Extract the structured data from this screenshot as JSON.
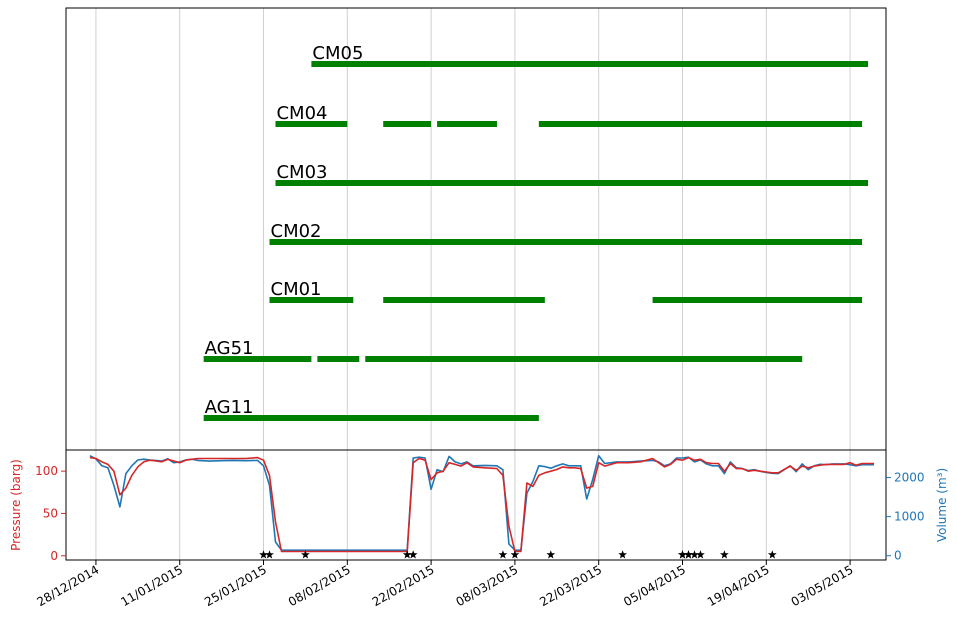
{
  "chart_data": [
    {
      "type": "timeline",
      "x_ticks": [
        "28/12/2014",
        "11/01/2015",
        "25/01/2015",
        "08/02/2015",
        "22/02/2015",
        "08/03/2015",
        "22/03/2015",
        "05/04/2015",
        "19/04/2015",
        "03/05/2015"
      ],
      "xlim": [
        "2014-12-23",
        "2015-05-09"
      ],
      "grid": "vertical",
      "bar_color": "#008000",
      "rows": [
        {
          "label": "CM05",
          "segments": [
            [
              "2015-02-02",
              "2015-05-06"
            ]
          ]
        },
        {
          "label": "CM04",
          "segments": [
            [
              "2015-01-27",
              "2015-02-08"
            ],
            [
              "2015-02-14",
              "2015-02-22"
            ],
            [
              "2015-02-23",
              "2015-03-05"
            ],
            [
              "2015-03-12",
              "2015-05-05"
            ]
          ]
        },
        {
          "label": "CM03",
          "segments": [
            [
              "2015-01-27",
              "2015-05-06"
            ]
          ]
        },
        {
          "label": "CM02",
          "segments": [
            [
              "2015-01-26",
              "2015-05-05"
            ]
          ]
        },
        {
          "label": "CM01",
          "segments": [
            [
              "2015-01-26",
              "2015-02-09"
            ],
            [
              "2015-02-14",
              "2015-03-13"
            ],
            [
              "2015-03-31",
              "2015-05-05"
            ]
          ]
        },
        {
          "label": "AG51",
          "segments": [
            [
              "2015-01-15",
              "2015-02-02"
            ],
            [
              "2015-02-03",
              "2015-02-10"
            ],
            [
              "2015-02-11",
              "2015-04-25"
            ]
          ]
        },
        {
          "label": "AG11",
          "segments": [
            [
              "2015-01-15",
              "2015-03-12"
            ]
          ]
        }
      ]
    },
    {
      "type": "line",
      "ylabel": "Pressure (barg)",
      "ylabel2": "Volume (m³)",
      "y_ticks": [
        0,
        50,
        100
      ],
      "y2_ticks": [
        0,
        1000,
        2000
      ],
      "ylim": [
        -5,
        125
      ],
      "y2lim": [
        -110,
        2705
      ],
      "grid": "vertical",
      "series": [
        {
          "color": "#d62728",
          "axis": "left",
          "points": [
            [
              "2014-12-27",
              116
            ],
            [
              "2014-12-28",
              115
            ],
            [
              "2014-12-29",
              111
            ],
            [
              "2014-12-30",
              108
            ],
            [
              "2014-12-31",
              100
            ],
            [
              "2015-01-01",
              72
            ],
            [
              "2015-01-02",
              80
            ],
            [
              "2015-01-03",
              95
            ],
            [
              "2015-01-04",
              105
            ],
            [
              "2015-01-05",
              111
            ],
            [
              "2015-01-06",
              113
            ],
            [
              "2015-01-07",
              112
            ],
            [
              "2015-01-08",
              111
            ],
            [
              "2015-01-09",
              114
            ],
            [
              "2015-01-10",
              112
            ],
            [
              "2015-01-11",
              110
            ],
            [
              "2015-01-12",
              113
            ],
            [
              "2015-01-13",
              114
            ],
            [
              "2015-01-14",
              115
            ],
            [
              "2015-01-16",
              115
            ],
            [
              "2015-01-18",
              115
            ],
            [
              "2015-01-20",
              115
            ],
            [
              "2015-01-22",
              115
            ],
            [
              "2015-01-24",
              116
            ],
            [
              "2015-01-25",
              113
            ],
            [
              "2015-01-26",
              95
            ],
            [
              "2015-01-27",
              40
            ],
            [
              "2015-01-28",
              5
            ],
            [
              "2015-02-02",
              5
            ],
            [
              "2015-02-10",
              5
            ],
            [
              "2015-02-15",
              5
            ],
            [
              "2015-02-18",
              5
            ],
            [
              "2015-02-19",
              110
            ],
            [
              "2015-02-20",
              115
            ],
            [
              "2015-02-21",
              113
            ],
            [
              "2015-02-22",
              90
            ],
            [
              "2015-02-23",
              98
            ],
            [
              "2015-02-24",
              100
            ],
            [
              "2015-02-25",
              110
            ],
            [
              "2015-02-26",
              108
            ],
            [
              "2015-02-27",
              106
            ],
            [
              "2015-02-28",
              110
            ],
            [
              "2015-03-01",
              105
            ],
            [
              "2015-03-03",
              104
            ],
            [
              "2015-03-05",
              103
            ],
            [
              "2015-03-06",
              95
            ],
            [
              "2015-03-07",
              35
            ],
            [
              "2015-03-08",
              5
            ],
            [
              "2015-03-09",
              5
            ],
            [
              "2015-03-10",
              86
            ],
            [
              "2015-03-11",
              82
            ],
            [
              "2015-03-12",
              95
            ],
            [
              "2015-03-13",
              98
            ],
            [
              "2015-03-14",
              100
            ],
            [
              "2015-03-15",
              102
            ],
            [
              "2015-03-16",
              105
            ],
            [
              "2015-03-17",
              104
            ],
            [
              "2015-03-18",
              104
            ],
            [
              "2015-03-19",
              103
            ],
            [
              "2015-03-20",
              80
            ],
            [
              "2015-03-21",
              82
            ],
            [
              "2015-03-22",
              110
            ],
            [
              "2015-03-23",
              106
            ],
            [
              "2015-03-25",
              110
            ],
            [
              "2015-03-27",
              110
            ],
            [
              "2015-03-29",
              111
            ],
            [
              "2015-03-31",
              115
            ],
            [
              "2015-04-01",
              110
            ],
            [
              "2015-04-02",
              105
            ],
            [
              "2015-04-03",
              108
            ],
            [
              "2015-04-04",
              114
            ],
            [
              "2015-04-05",
              113
            ],
            [
              "2015-04-06",
              116
            ],
            [
              "2015-04-07",
              113
            ],
            [
              "2015-04-08",
              114
            ],
            [
              "2015-04-09",
              110
            ],
            [
              "2015-04-10",
              109
            ],
            [
              "2015-04-11",
              109
            ],
            [
              "2015-04-12",
              100
            ],
            [
              "2015-04-13",
              109
            ],
            [
              "2015-04-14",
              103
            ],
            [
              "2015-04-15",
              103
            ],
            [
              "2015-04-16",
              100
            ],
            [
              "2015-04-17",
              101
            ],
            [
              "2015-04-18",
              100
            ],
            [
              "2015-04-19",
              99
            ],
            [
              "2015-04-20",
              98
            ],
            [
              "2015-04-21",
              98
            ],
            [
              "2015-04-22",
              102
            ],
            [
              "2015-04-23",
              106
            ],
            [
              "2015-04-24",
              101
            ],
            [
              "2015-04-25",
              106
            ],
            [
              "2015-04-26",
              104
            ],
            [
              "2015-04-27",
              106
            ],
            [
              "2015-04-28",
              107
            ],
            [
              "2015-04-29",
              108
            ],
            [
              "2015-04-30",
              108
            ],
            [
              "2015-05-01",
              108
            ],
            [
              "2015-05-02",
              108
            ],
            [
              "2015-05-03",
              110
            ],
            [
              "2015-05-04",
              107
            ],
            [
              "2015-05-05",
              109
            ],
            [
              "2015-05-06",
              109
            ],
            [
              "2015-05-07",
              109
            ]
          ]
        },
        {
          "color": "#1f77b4",
          "axis": "right",
          "points": [
            [
              "2014-12-27",
              2560
            ],
            [
              "2014-12-28",
              2480
            ],
            [
              "2014-12-29",
              2300
            ],
            [
              "2014-12-30",
              2250
            ],
            [
              "2014-12-31",
              1800
            ],
            [
              "2015-01-01",
              1250
            ],
            [
              "2015-01-02",
              2100
            ],
            [
              "2015-01-03",
              2300
            ],
            [
              "2015-01-04",
              2450
            ],
            [
              "2015-01-05",
              2470
            ],
            [
              "2015-01-06",
              2450
            ],
            [
              "2015-01-07",
              2440
            ],
            [
              "2015-01-08",
              2420
            ],
            [
              "2015-01-09",
              2480
            ],
            [
              "2015-01-10",
              2380
            ],
            [
              "2015-01-11",
              2400
            ],
            [
              "2015-01-12",
              2450
            ],
            [
              "2015-01-13",
              2470
            ],
            [
              "2015-01-14",
              2440
            ],
            [
              "2015-01-16",
              2420
            ],
            [
              "2015-01-18",
              2430
            ],
            [
              "2015-01-20",
              2440
            ],
            [
              "2015-01-22",
              2430
            ],
            [
              "2015-01-24",
              2440
            ],
            [
              "2015-01-25",
              2300
            ],
            [
              "2015-01-26",
              1800
            ],
            [
              "2015-01-27",
              350
            ],
            [
              "2015-01-28",
              140
            ],
            [
              "2015-02-02",
              140
            ],
            [
              "2015-02-10",
              140
            ],
            [
              "2015-02-15",
              140
            ],
            [
              "2015-02-18",
              140
            ],
            [
              "2015-02-19",
              2500
            ],
            [
              "2015-02-20",
              2520
            ],
            [
              "2015-02-21",
              2500
            ],
            [
              "2015-02-22",
              1700
            ],
            [
              "2015-02-23",
              2200
            ],
            [
              "2015-02-24",
              2150
            ],
            [
              "2015-02-25",
              2540
            ],
            [
              "2015-02-26",
              2400
            ],
            [
              "2015-02-27",
              2350
            ],
            [
              "2015-02-28",
              2400
            ],
            [
              "2015-03-01",
              2300
            ],
            [
              "2015-03-03",
              2310
            ],
            [
              "2015-03-05",
              2300
            ],
            [
              "2015-03-06",
              2200
            ],
            [
              "2015-03-07",
              300
            ],
            [
              "2015-03-08",
              140
            ],
            [
              "2015-03-09",
              140
            ],
            [
              "2015-03-10",
              1600
            ],
            [
              "2015-03-11",
              1900
            ],
            [
              "2015-03-12",
              2300
            ],
            [
              "2015-03-13",
              2280
            ],
            [
              "2015-03-14",
              2240
            ],
            [
              "2015-03-15",
              2300
            ],
            [
              "2015-03-16",
              2350
            ],
            [
              "2015-03-17",
              2300
            ],
            [
              "2015-03-18",
              2300
            ],
            [
              "2015-03-19",
              2300
            ],
            [
              "2015-03-20",
              1450
            ],
            [
              "2015-03-21",
              1950
            ],
            [
              "2015-03-22",
              2560
            ],
            [
              "2015-03-23",
              2360
            ],
            [
              "2015-03-25",
              2400
            ],
            [
              "2015-03-27",
              2400
            ],
            [
              "2015-03-29",
              2420
            ],
            [
              "2015-03-31",
              2440
            ],
            [
              "2015-04-01",
              2400
            ],
            [
              "2015-04-02",
              2300
            ],
            [
              "2015-04-03",
              2350
            ],
            [
              "2015-04-04",
              2500
            ],
            [
              "2015-04-05",
              2500
            ],
            [
              "2015-04-06",
              2520
            ],
            [
              "2015-04-07",
              2400
            ],
            [
              "2015-04-08",
              2450
            ],
            [
              "2015-04-09",
              2350
            ],
            [
              "2015-04-10",
              2300
            ],
            [
              "2015-04-11",
              2300
            ],
            [
              "2015-04-12",
              2100
            ],
            [
              "2015-04-13",
              2400
            ],
            [
              "2015-04-14",
              2250
            ],
            [
              "2015-04-15",
              2230
            ],
            [
              "2015-04-16",
              2180
            ],
            [
              "2015-04-17",
              2200
            ],
            [
              "2015-04-18",
              2160
            ],
            [
              "2015-04-19",
              2130
            ],
            [
              "2015-04-20",
              2110
            ],
            [
              "2015-04-21",
              2100
            ],
            [
              "2015-04-22",
              2200
            ],
            [
              "2015-04-23",
              2300
            ],
            [
              "2015-04-24",
              2150
            ],
            [
              "2015-04-25",
              2350
            ],
            [
              "2015-04-26",
              2200
            ],
            [
              "2015-04-27",
              2300
            ],
            [
              "2015-04-28",
              2340
            ],
            [
              "2015-04-29",
              2330
            ],
            [
              "2015-04-30",
              2350
            ],
            [
              "2015-05-01",
              2350
            ],
            [
              "2015-05-02",
              2350
            ],
            [
              "2015-05-03",
              2330
            ],
            [
              "2015-05-04",
              2300
            ],
            [
              "2015-05-05",
              2330
            ],
            [
              "2015-05-06",
              2330
            ],
            [
              "2015-05-07",
              2330
            ]
          ]
        }
      ],
      "markers": {
        "symbol": "star",
        "value": 0,
        "dates": [
          "2015-01-25",
          "2015-01-26",
          "2015-02-01",
          "2015-02-18",
          "2015-02-19",
          "2015-03-06",
          "2015-03-08",
          "2015-03-14",
          "2015-03-26",
          "2015-04-05",
          "2015-04-05",
          "2015-04-06",
          "2015-04-06",
          "2015-04-07",
          "2015-04-08",
          "2015-04-12",
          "2015-04-20"
        ]
      },
      "colors": {
        "pressure": "#d62728",
        "volume": "#1f77b4"
      }
    }
  ]
}
